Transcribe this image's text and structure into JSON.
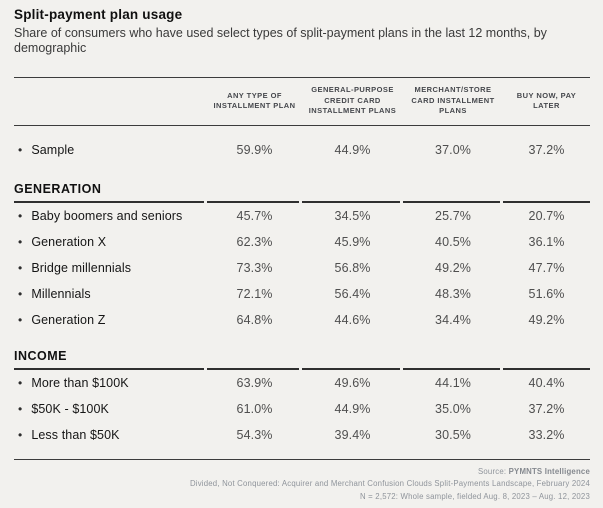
{
  "chart_data": {
    "type": "table",
    "title": "Split-payment plan usage",
    "subtitle": "Share of consumers who have used select types of split-payment plans in the last 12 months, by demographic",
    "columns": [
      "ANY TYPE OF INSTALLMENT PLAN",
      "GENERAL-PURPOSE CREDIT CARD INSTALLMENT PLANS",
      "MERCHANT/STORE CARD INSTALLMENT PLANS",
      "BUY NOW, PAY LATER"
    ],
    "groups": [
      {
        "name": "",
        "rows": [
          {
            "label": "Sample",
            "values": [
              "59.9%",
              "44.9%",
              "37.0%",
              "37.2%"
            ]
          }
        ]
      },
      {
        "name": "GENERATION",
        "rows": [
          {
            "label": "Baby boomers and seniors",
            "values": [
              "45.7%",
              "34.5%",
              "25.7%",
              "20.7%"
            ]
          },
          {
            "label": "Generation X",
            "values": [
              "62.3%",
              "45.9%",
              "40.5%",
              "36.1%"
            ]
          },
          {
            "label": "Bridge millennials",
            "values": [
              "73.3%",
              "56.8%",
              "49.2%",
              "47.7%"
            ]
          },
          {
            "label": "Millennials",
            "values": [
              "72.1%",
              "56.4%",
              "48.3%",
              "51.6%"
            ]
          },
          {
            "label": "Generation Z",
            "values": [
              "64.8%",
              "44.6%",
              "34.4%",
              "49.2%"
            ]
          }
        ]
      },
      {
        "name": "INCOME",
        "rows": [
          {
            "label": "More than $100K",
            "values": [
              "63.9%",
              "49.6%",
              "44.1%",
              "40.4%"
            ]
          },
          {
            "label": "$50K - $100K",
            "values": [
              "61.0%",
              "44.9%",
              "35.0%",
              "37.2%"
            ]
          },
          {
            "label": "Less than $50K",
            "values": [
              "54.3%",
              "39.4%",
              "30.5%",
              "33.2%"
            ]
          }
        ]
      }
    ],
    "layout": {
      "grid": "off",
      "value_format": "percent"
    }
  },
  "icons": {
    "row_bullet": "•"
  },
  "footer": {
    "source_label": "Source: ",
    "source_name": "PYMNTS Intelligence",
    "line2": "Divided, Not Conquered: Acquirer and Merchant Confusion Clouds Split-Payments Landscape, February 2024",
    "line3": "N = 2,572: Whole sample, fielded Aug. 8, 2023 – Aug. 12, 2023"
  },
  "colors": {
    "background": "#f2f1ee",
    "rule": "#3c3c3c",
    "title_text": "#101010",
    "subtitle_text": "#3a3a3a",
    "column_header_text": "#46484d",
    "row_label_text": "#161616",
    "value_text": "#4f4f4f",
    "footer_text": "#8f949b"
  }
}
